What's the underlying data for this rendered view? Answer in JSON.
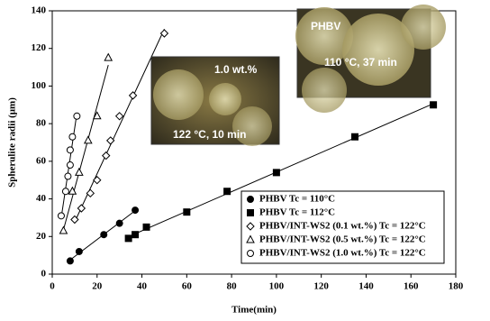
{
  "chart_data": {
    "type": "scatter",
    "x_label": "Time(min)",
    "y_label": "Spherulite radii (μm)",
    "xlim": [
      0,
      180
    ],
    "ylim": [
      0,
      140
    ],
    "xticks": [
      0,
      20,
      40,
      60,
      80,
      100,
      120,
      140,
      160,
      180
    ],
    "yticks": [
      0,
      20,
      40,
      60,
      80,
      100,
      120,
      140
    ],
    "series": [
      {
        "name": "PHBV Tc = 110°C",
        "marker": "circle",
        "filled": true,
        "color": "#000000",
        "x": [
          8,
          12,
          23,
          30,
          37
        ],
        "values": [
          7,
          12,
          21,
          27,
          34
        ]
      },
      {
        "name": "PHBV Tc = 112°C",
        "marker": "square",
        "filled": true,
        "color": "#000000",
        "x": [
          34,
          37,
          42,
          60,
          78,
          100,
          135,
          170
        ],
        "values": [
          19,
          21,
          25,
          33,
          44,
          54,
          73,
          90
        ]
      },
      {
        "name": "PHBV/INT-WS2 (0.1 wt.%) Tc = 122°C",
        "marker": "diamond",
        "filled": false,
        "color": "#000000",
        "x": [
          10,
          13,
          17,
          20,
          24,
          26,
          30,
          36,
          50
        ],
        "values": [
          29,
          35,
          43,
          50,
          63,
          71,
          84,
          95,
          128
        ]
      },
      {
        "name": "PHBV/INT-WS2 (0.5 wt.%) Tc = 122°C",
        "marker": "triangle",
        "filled": false,
        "color": "#000000",
        "x": [
          5,
          9,
          12,
          16,
          20,
          25
        ],
        "values": [
          23,
          44,
          54,
          71,
          84,
          115
        ]
      },
      {
        "name": "PHBV/INT-WS2 (1.0 wt.%) Tc = 122°C",
        "marker": "circle",
        "filled": false,
        "color": "#000000",
        "x": [
          4,
          6,
          7,
          8,
          8,
          9,
          11
        ],
        "values": [
          31,
          44,
          52,
          58,
          66,
          73,
          84
        ]
      }
    ],
    "insets": [
      {
        "label": "1.0 wt.%",
        "caption": "122 °C, 10 min"
      },
      {
        "label": "PHBV",
        "caption": "110 °C, 37 min"
      }
    ]
  }
}
